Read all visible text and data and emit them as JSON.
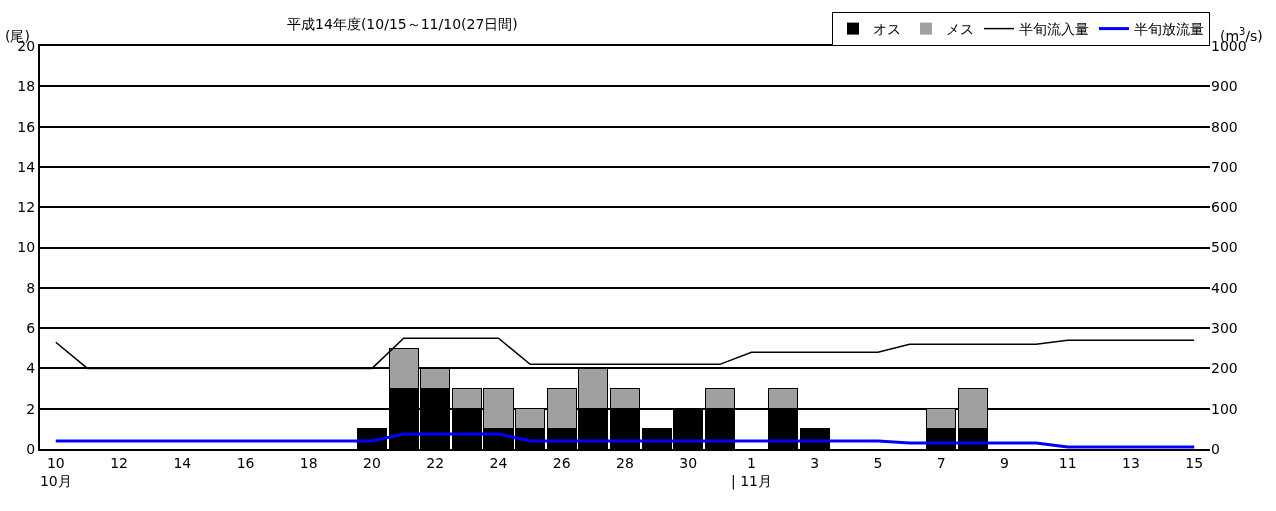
{
  "chart_data": {
    "type": "bar",
    "title": "平成14年度(10/15～11/10(27日間)",
    "ylabel": "(尾)",
    "y2label": "(m$^{3}$/s)",
    "categories": [
      "10\n10月",
      null,
      "12",
      null,
      "14",
      null,
      "16",
      null,
      "18",
      null,
      "20",
      null,
      "22",
      null,
      "24",
      null,
      "26",
      null,
      "28",
      null,
      "30",
      null,
      "1\n| 11月",
      null,
      "3",
      null,
      "5",
      null,
      "7",
      null,
      "9",
      null,
      "11",
      null,
      "13",
      null,
      "15"
    ],
    "stacked": true,
    "series": [
      {
        "name": "オス",
        "color": "#000000",
        "values": [
          0,
          0,
          0,
          0,
          0,
          0,
          0,
          0,
          0,
          0,
          1,
          3,
          3,
          2,
          1,
          1,
          1,
          2,
          2,
          1,
          2,
          2,
          0,
          2,
          1,
          0,
          0,
          0,
          1,
          1,
          0,
          0,
          0,
          0,
          0,
          0,
          0
        ]
      },
      {
        "name": "メス",
        "color": "#a0a0a0",
        "values": [
          0,
          0,
          0,
          0,
          0,
          0,
          0,
          0,
          0,
          0,
          0,
          2,
          1,
          1,
          2,
          1,
          2,
          2,
          1,
          0,
          0,
          1,
          0,
          1,
          0,
          0,
          0,
          0,
          1,
          2,
          0,
          0,
          0,
          0,
          0,
          0,
          0
        ]
      },
      {
        "name": "半旬流入量",
        "type": "line",
        "axis": "y2",
        "color": "#000000",
        "values": [
          265,
          200,
          200,
          200,
          200,
          200,
          200,
          200,
          200,
          200,
          200,
          275,
          275,
          275,
          275,
          210,
          210,
          210,
          210,
          210,
          210,
          210,
          240,
          240,
          240,
          240,
          240,
          260,
          260,
          260,
          260,
          260,
          270,
          270,
          270,
          270,
          270
        ]
      },
      {
        "name": "半旬放流量",
        "type": "line",
        "axis": "y2",
        "color": "#0000ff",
        "values": [
          20,
          20,
          20,
          20,
          20,
          20,
          20,
          20,
          20,
          20,
          20,
          37,
          37,
          37,
          37,
          20,
          20,
          20,
          20,
          20,
          20,
          20,
          20,
          20,
          20,
          20,
          20,
          15,
          15,
          15,
          15,
          15,
          5,
          5,
          5,
          5,
          5
        ]
      }
    ],
    "ylim": [
      0,
      20
    ],
    "yticks": [
      0,
      2,
      4,
      6,
      8,
      10,
      12,
      14,
      16,
      18,
      20
    ],
    "y2lim": [
      0,
      1000
    ],
    "y2ticks": [
      0,
      100,
      200,
      300,
      400,
      500,
      600,
      700,
      800,
      900,
      1000
    ],
    "grid": "y",
    "legend": "top right",
    "marker": "none",
    "line_style": "solid"
  }
}
